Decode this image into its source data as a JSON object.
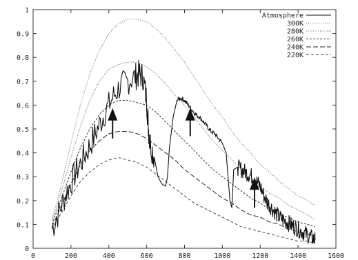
{
  "chart_data": {
    "type": "line",
    "title": "",
    "xlabel": "",
    "ylabel": "",
    "xlim": [
      0,
      1600
    ],
    "ylim": [
      0,
      1
    ],
    "x_ticks": [
      0,
      200,
      400,
      600,
      800,
      1000,
      1200,
      1400,
      1600
    ],
    "x_tick_labels": [
      "0",
      "200",
      "400",
      "600",
      "800",
      "1000",
      "1200",
      "1400",
      "1600"
    ],
    "y_ticks": [
      0,
      0.1,
      0.2,
      0.3,
      0.4,
      0.5,
      0.6,
      0.7,
      0.8,
      0.9,
      1
    ],
    "y_tick_labels": [
      "0",
      "0.1",
      "0.2",
      "0.3",
      "0.4",
      "0.5",
      "0.6",
      "0.7",
      "0.8",
      "0.9",
      "1"
    ],
    "grid": false,
    "legend_position": "top-right",
    "series": [
      {
        "name": "Atmosphere",
        "style": "solid",
        "color": "#111111",
        "x": [
          100,
          140,
          180,
          220,
          260,
          300,
          340,
          380,
          420,
          460,
          500,
          540,
          560,
          580,
          600,
          610,
          620,
          640,
          660,
          680,
          700,
          710,
          720,
          740,
          760,
          780,
          800,
          820,
          840,
          860,
          880,
          900,
          920,
          940,
          960,
          980,
          1000,
          1020,
          1030,
          1040,
          1050,
          1060,
          1080,
          1100,
          1120,
          1140,
          1160,
          1180,
          1200,
          1220,
          1240,
          1260,
          1280,
          1300,
          1320,
          1340,
          1360,
          1380,
          1400,
          1420,
          1440,
          1460,
          1480,
          1490
        ],
        "y": [
          0.08,
          0.16,
          0.24,
          0.31,
          0.37,
          0.43,
          0.5,
          0.57,
          0.63,
          0.68,
          0.7,
          0.72,
          0.73,
          0.72,
          0.62,
          0.5,
          0.44,
          0.38,
          0.3,
          0.27,
          0.26,
          0.3,
          0.42,
          0.55,
          0.62,
          0.63,
          0.62,
          0.6,
          0.58,
          0.56,
          0.55,
          0.53,
          0.51,
          0.49,
          0.48,
          0.46,
          0.44,
          0.4,
          0.3,
          0.2,
          0.17,
          0.33,
          0.34,
          0.33,
          0.32,
          0.31,
          0.3,
          0.28,
          0.26,
          0.22,
          0.19,
          0.17,
          0.15,
          0.13,
          0.12,
          0.11,
          0.1,
          0.09,
          0.08,
          0.07,
          0.06,
          0.05,
          0.04,
          0.035
        ],
        "noise": true
      },
      {
        "name": "300K",
        "style": "dotted",
        "color": "#555555",
        "x": [
          100,
          150,
          200,
          250,
          300,
          350,
          400,
          450,
          500,
          550,
          600,
          650,
          700,
          750,
          800,
          850,
          900,
          950,
          1000,
          1050,
          1100,
          1150,
          1200,
          1250,
          1300,
          1350,
          1400,
          1450,
          1490
        ],
        "y": [
          0.12,
          0.27,
          0.44,
          0.6,
          0.73,
          0.83,
          0.9,
          0.94,
          0.96,
          0.96,
          0.95,
          0.92,
          0.88,
          0.83,
          0.78,
          0.72,
          0.66,
          0.6,
          0.55,
          0.49,
          0.44,
          0.4,
          0.35,
          0.32,
          0.28,
          0.25,
          0.22,
          0.2,
          0.18
        ]
      },
      {
        "name": "280K",
        "style": "dotted-fine",
        "color": "#666666",
        "x": [
          100,
          150,
          200,
          250,
          300,
          350,
          400,
          450,
          500,
          550,
          600,
          650,
          700,
          750,
          800,
          850,
          900,
          950,
          1000,
          1050,
          1100,
          1150,
          1200,
          1250,
          1300,
          1350,
          1400,
          1450,
          1490
        ],
        "y": [
          0.11,
          0.24,
          0.38,
          0.51,
          0.62,
          0.7,
          0.75,
          0.77,
          0.78,
          0.78,
          0.76,
          0.73,
          0.69,
          0.64,
          0.6,
          0.55,
          0.5,
          0.45,
          0.41,
          0.37,
          0.33,
          0.29,
          0.26,
          0.23,
          0.21,
          0.18,
          0.16,
          0.14,
          0.12
        ]
      },
      {
        "name": "260K",
        "style": "dashed-fine",
        "color": "#333333",
        "x": [
          100,
          150,
          200,
          250,
          300,
          350,
          400,
          450,
          500,
          550,
          600,
          650,
          700,
          750,
          800,
          850,
          900,
          950,
          1000,
          1050,
          1100,
          1150,
          1200,
          1250,
          1300,
          1350,
          1400,
          1450,
          1490
        ],
        "y": [
          0.1,
          0.21,
          0.32,
          0.42,
          0.5,
          0.56,
          0.6,
          0.62,
          0.62,
          0.61,
          0.6,
          0.57,
          0.53,
          0.49,
          0.45,
          0.41,
          0.37,
          0.33,
          0.3,
          0.27,
          0.24,
          0.21,
          0.19,
          0.16,
          0.14,
          0.13,
          0.11,
          0.1,
          0.09
        ]
      },
      {
        "name": "240K",
        "style": "long-dash",
        "color": "#222222",
        "x": [
          100,
          150,
          200,
          250,
          300,
          350,
          400,
          450,
          500,
          550,
          600,
          650,
          700,
          750,
          800,
          850,
          900,
          950,
          1000,
          1050,
          1100,
          1150,
          1200,
          1250,
          1300,
          1350,
          1400,
          1450,
          1490
        ],
        "y": [
          0.09,
          0.18,
          0.27,
          0.35,
          0.41,
          0.45,
          0.48,
          0.49,
          0.49,
          0.48,
          0.46,
          0.43,
          0.4,
          0.37,
          0.33,
          0.3,
          0.27,
          0.24,
          0.21,
          0.19,
          0.16,
          0.14,
          0.13,
          0.11,
          0.1,
          0.08,
          0.07,
          0.06,
          0.05
        ]
      },
      {
        "name": "220K",
        "style": "dashed",
        "color": "#444444",
        "x": [
          100,
          150,
          200,
          250,
          300,
          350,
          400,
          450,
          500,
          550,
          600,
          650,
          700,
          750,
          800,
          850,
          900,
          950,
          1000,
          1050,
          1100,
          1150,
          1200,
          1250,
          1300,
          1350,
          1400,
          1450,
          1490
        ],
        "y": [
          0.08,
          0.15,
          0.22,
          0.28,
          0.32,
          0.35,
          0.37,
          0.38,
          0.37,
          0.36,
          0.34,
          0.31,
          0.28,
          0.25,
          0.22,
          0.19,
          0.17,
          0.15,
          0.13,
          0.11,
          0.09,
          0.08,
          0.07,
          0.06,
          0.05,
          0.04,
          0.03,
          0.03,
          0.02
        ]
      }
    ],
    "annotations": [
      {
        "type": "arrow",
        "x": 420,
        "y_from": 0.46,
        "y_to": 0.57
      },
      {
        "type": "arrow",
        "x": 830,
        "y_from": 0.47,
        "y_to": 0.57
      },
      {
        "type": "arrow",
        "x": 1170,
        "y_from": 0.17,
        "y_to": 0.28
      }
    ]
  }
}
